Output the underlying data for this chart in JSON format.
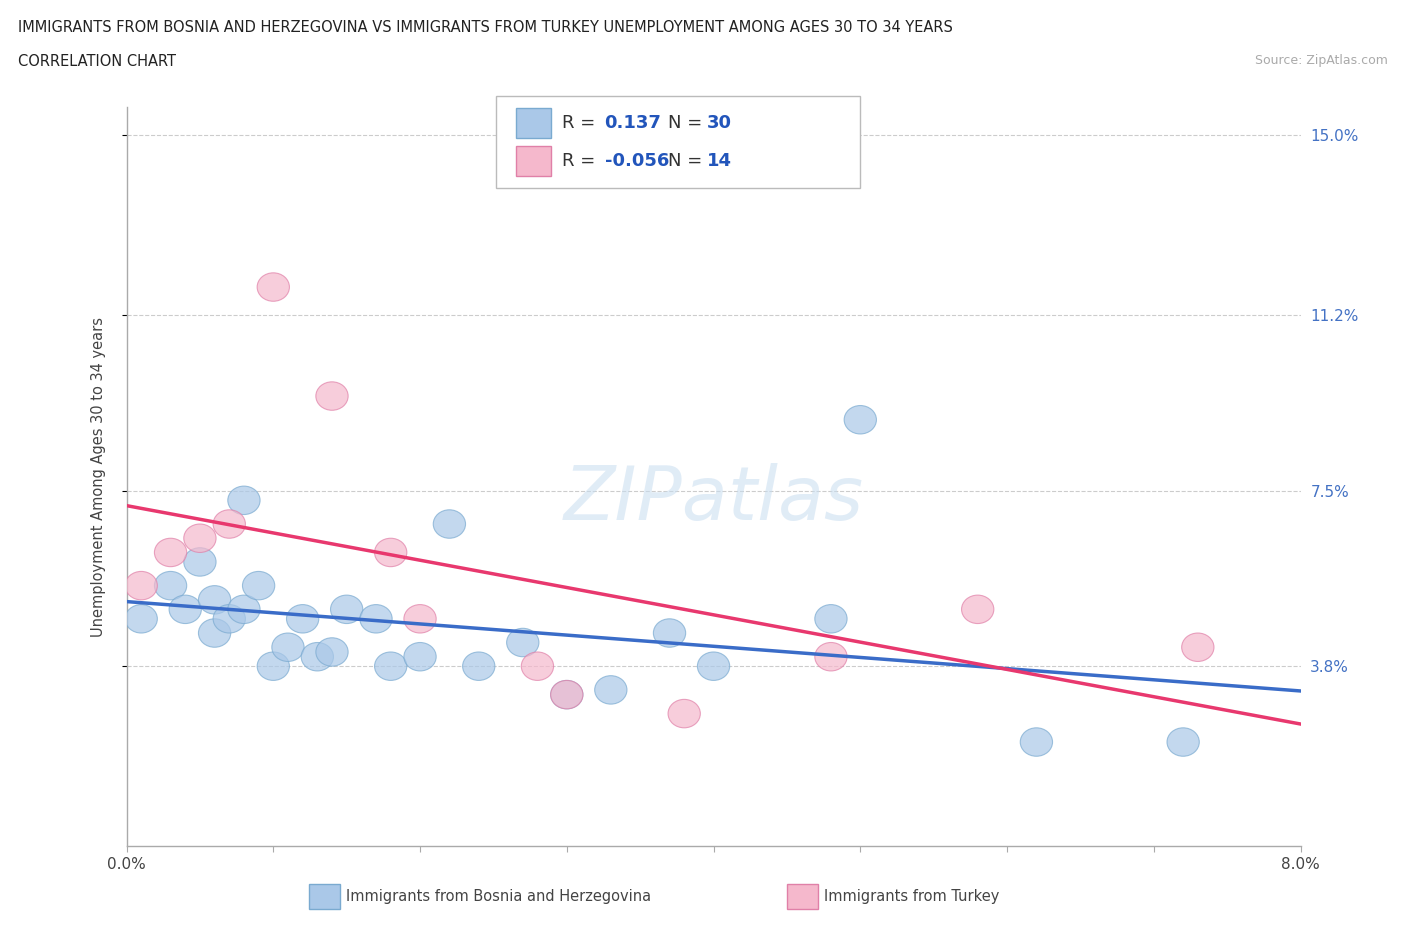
{
  "title_line1": "IMMIGRANTS FROM BOSNIA AND HERZEGOVINA VS IMMIGRANTS FROM TURKEY UNEMPLOYMENT AMONG AGES 30 TO 34 YEARS",
  "title_line2": "CORRELATION CHART",
  "source": "Source: ZipAtlas.com",
  "ylabel": "Unemployment Among Ages 30 to 34 years",
  "xlim": [
    0.0,
    0.08
  ],
  "ylim": [
    0.0,
    0.156
  ],
  "xtick_positions": [
    0.0,
    0.01,
    0.02,
    0.03,
    0.04,
    0.05,
    0.06,
    0.07,
    0.08
  ],
  "xticklabels": [
    "0.0%",
    "",
    "",
    "",
    "",
    "",
    "",
    "",
    "8.0%"
  ],
  "ytick_positions": [
    0.038,
    0.075,
    0.112,
    0.15
  ],
  "ytick_labels": [
    "3.8%",
    "7.5%",
    "11.2%",
    "15.0%"
  ],
  "blue_R": "0.137",
  "blue_N": "30",
  "pink_R": "-0.056",
  "pink_N": "14",
  "blue_color": "#aac8e8",
  "pink_color": "#f5b8cc",
  "blue_edge_color": "#7aaad0",
  "pink_edge_color": "#e080a8",
  "blue_line_color": "#3a6cc8",
  "pink_line_color": "#e8386e",
  "accent_blue": "#2255bb",
  "legend_label_blue": "Immigrants from Bosnia and Herzegovina",
  "legend_label_pink": "Immigrants from Turkey",
  "blue_scatter_x": [
    0.001,
    0.003,
    0.004,
    0.005,
    0.006,
    0.006,
    0.007,
    0.008,
    0.008,
    0.009,
    0.01,
    0.011,
    0.012,
    0.013,
    0.014,
    0.015,
    0.017,
    0.018,
    0.02,
    0.022,
    0.024,
    0.027,
    0.03,
    0.033,
    0.037,
    0.04,
    0.048,
    0.05,
    0.062,
    0.072
  ],
  "blue_scatter_y": [
    0.048,
    0.055,
    0.05,
    0.06,
    0.052,
    0.045,
    0.048,
    0.073,
    0.05,
    0.055,
    0.038,
    0.042,
    0.048,
    0.04,
    0.041,
    0.05,
    0.048,
    0.038,
    0.04,
    0.068,
    0.038,
    0.043,
    0.032,
    0.033,
    0.045,
    0.038,
    0.048,
    0.09,
    0.022,
    0.022
  ],
  "pink_scatter_x": [
    0.001,
    0.003,
    0.005,
    0.007,
    0.01,
    0.014,
    0.018,
    0.02,
    0.028,
    0.03,
    0.038,
    0.048,
    0.058,
    0.073
  ],
  "pink_scatter_y": [
    0.055,
    0.062,
    0.065,
    0.068,
    0.118,
    0.095,
    0.062,
    0.048,
    0.038,
    0.032,
    0.028,
    0.04,
    0.05,
    0.042
  ],
  "watermark_text": "ZIPatlas",
  "background_color": "#ffffff",
  "grid_color": "#cccccc"
}
